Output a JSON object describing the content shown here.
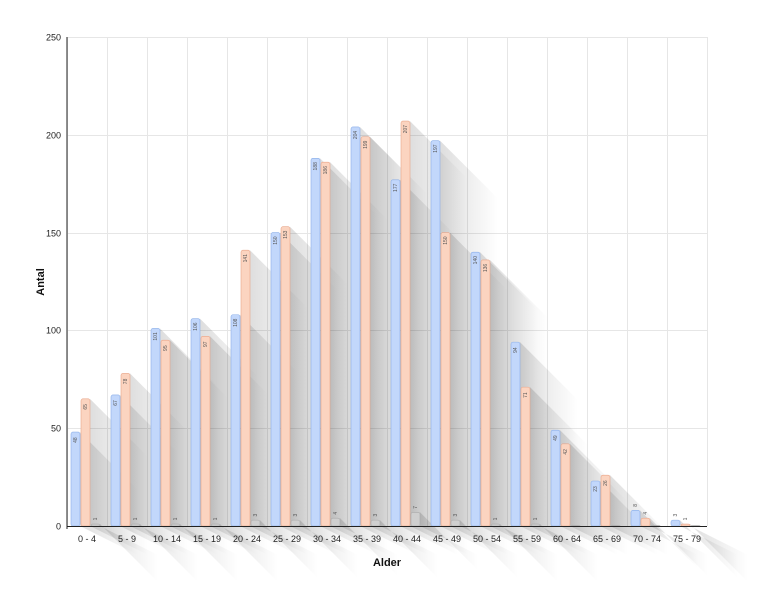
{
  "chart_data": {
    "type": "bar",
    "categories": [
      "0 - 4",
      "5 - 9",
      "10 - 14",
      "15 - 19",
      "20 - 24",
      "25 - 29",
      "30 - 34",
      "35 - 39",
      "40 - 44",
      "45 - 49",
      "50 - 54",
      "55 - 59",
      "60 - 64",
      "65 - 69",
      "70 - 74",
      "75 - 79"
    ],
    "series": [
      {
        "values": [
          48,
          67,
          101,
          106,
          108,
          150,
          188,
          204,
          177,
          197,
          140,
          94,
          49,
          23,
          8,
          3
        ],
        "color": "#c2d7fb",
        "stroke": "#8aaee8"
      },
      {
        "values": [
          65,
          78,
          95,
          97,
          141,
          153,
          186,
          199,
          207,
          150,
          136,
          71,
          42,
          26,
          4,
          1
        ],
        "color": "#fbd4c0",
        "stroke": "#e8a488"
      },
      {
        "values": [
          1,
          1,
          1,
          1,
          3,
          3,
          4,
          3,
          7,
          3,
          1,
          1,
          0,
          0,
          0,
          0
        ],
        "color": "#cfcfcf",
        "stroke": "#a8a8a8"
      }
    ],
    "data_labels": [
      [
        "48",
        "67",
        "101",
        "106",
        "108",
        "150",
        "188",
        "204",
        "177",
        "197",
        "140",
        "94",
        "49",
        "23",
        "8",
        "3"
      ],
      [
        "65",
        "78",
        "95",
        "97",
        "141",
        "153",
        "186",
        "199",
        "207",
        "150",
        "136",
        "71",
        "42",
        "26",
        "4",
        "1"
      ],
      [
        "1",
        "1",
        "1",
        "1",
        "3",
        "3",
        "4",
        "3",
        "7",
        "3",
        "1",
        "1",
        "",
        "",
        "",
        ""
      ]
    ],
    "xlabel": "Alder",
    "ylabel": "Antal",
    "ylim": [
      0,
      250
    ],
    "yticks": [
      0,
      50,
      100,
      150,
      200,
      250
    ],
    "grid": true,
    "shadow": true
  }
}
